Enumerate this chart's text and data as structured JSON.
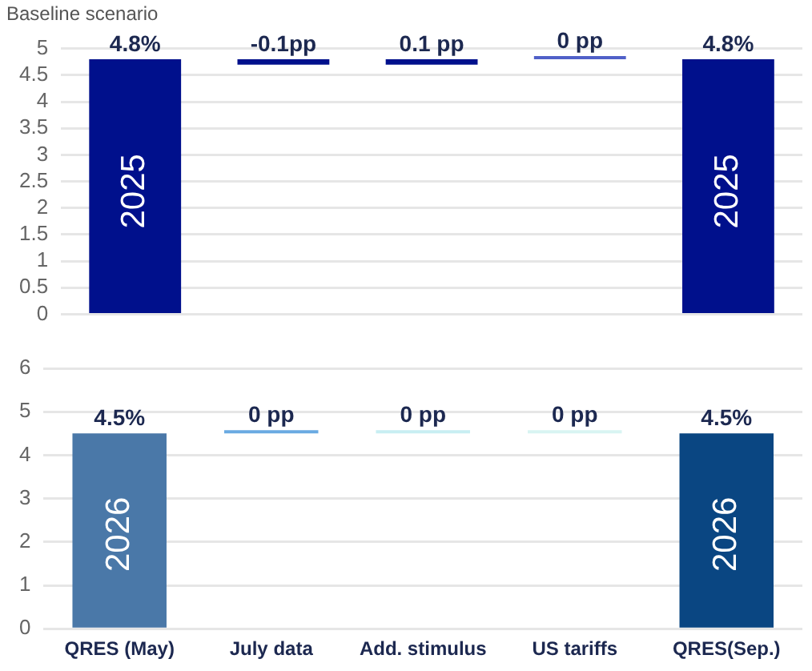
{
  "chart_data": [
    {
      "type": "bar",
      "title": "Baseline scenario",
      "categories": [
        null,
        null,
        null,
        null,
        null
      ],
      "values": [
        4.8,
        -0.1,
        0.1,
        0,
        4.8
      ],
      "base": [
        0,
        4.8,
        4.7,
        4.8,
        0
      ],
      "colors": [
        "#00108c",
        "#00108c",
        "#00108c",
        "#5060c8",
        "#00108c"
      ],
      "value_labels": [
        "4.8%",
        "-0.1pp",
        "0.1 pp",
        "0 pp",
        "4.8%"
      ],
      "ylim": [
        0,
        5
      ],
      "yticks": [
        0,
        0.5,
        1,
        1.5,
        2,
        2.5,
        3,
        3.5,
        4,
        4.5,
        5
      ],
      "grid": "y",
      "tick_labels": "y",
      "annotations": [
        "2025",
        "2025"
      ]
    },
    {
      "type": "bar",
      "categories": [
        "QRES (May)",
        "July data",
        "Add. stimulus",
        "US tariffs",
        "QRES(Sep.)"
      ],
      "values": [
        4.5,
        0,
        0,
        0,
        4.5
      ],
      "base": [
        0,
        4.5,
        4.5,
        4.5,
        0
      ],
      "colors": [
        "#4a78a8",
        "#6aaae2",
        "#c8eef2",
        "#d8f4f2",
        "#0a4682"
      ],
      "value_labels": [
        "4.5%",
        "0 pp",
        "0 pp",
        "0 pp",
        "4.5%"
      ],
      "ylim": [
        0,
        6
      ],
      "yticks": [
        0,
        1,
        2,
        3,
        4,
        5,
        6
      ],
      "grid": "y",
      "annotations": [
        "2026",
        "2026"
      ]
    }
  ]
}
